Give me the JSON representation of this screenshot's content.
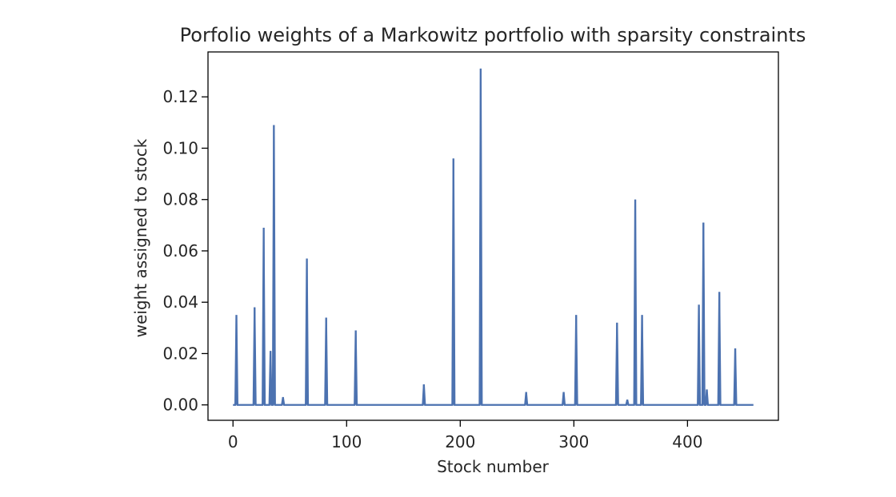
{
  "chart_data": {
    "type": "line",
    "title": "Porfolio weights of a Markowitz portfolio with sparsity constraints",
    "xlabel": "Stock number",
    "ylabel": "weight assigned to stock",
    "xlim": [
      -22,
      480
    ],
    "ylim": [
      -0.006,
      0.1375
    ],
    "xticks": [
      0,
      100,
      200,
      300,
      400
    ],
    "xtick_labels": [
      "0",
      "100",
      "200",
      "300",
      "400"
    ],
    "yticks": [
      0.0,
      0.02,
      0.04,
      0.06,
      0.08,
      0.1,
      0.12
    ],
    "ytick_labels": [
      "0.00",
      "0.02",
      "0.04",
      "0.06",
      "0.08",
      "0.10",
      "0.12"
    ],
    "grid": false,
    "line_color": "#4c72b0",
    "x_min": 0,
    "x_max": 458,
    "nonzero_weights": [
      {
        "x": 3,
        "y": 0.035
      },
      {
        "x": 19,
        "y": 0.038
      },
      {
        "x": 27,
        "y": 0.069
      },
      {
        "x": 33,
        "y": 0.021
      },
      {
        "x": 36,
        "y": 0.109
      },
      {
        "x": 44,
        "y": 0.003
      },
      {
        "x": 65,
        "y": 0.057
      },
      {
        "x": 82,
        "y": 0.034
      },
      {
        "x": 108,
        "y": 0.029
      },
      {
        "x": 168,
        "y": 0.008
      },
      {
        "x": 194,
        "y": 0.096
      },
      {
        "x": 218,
        "y": 0.131
      },
      {
        "x": 258,
        "y": 0.005
      },
      {
        "x": 291,
        "y": 0.005
      },
      {
        "x": 302,
        "y": 0.035
      },
      {
        "x": 338,
        "y": 0.032
      },
      {
        "x": 347,
        "y": 0.002
      },
      {
        "x": 354,
        "y": 0.08
      },
      {
        "x": 360,
        "y": 0.035
      },
      {
        "x": 410,
        "y": 0.039
      },
      {
        "x": 414,
        "y": 0.071
      },
      {
        "x": 417,
        "y": 0.006
      },
      {
        "x": 428,
        "y": 0.044
      },
      {
        "x": 442,
        "y": 0.022
      }
    ]
  }
}
